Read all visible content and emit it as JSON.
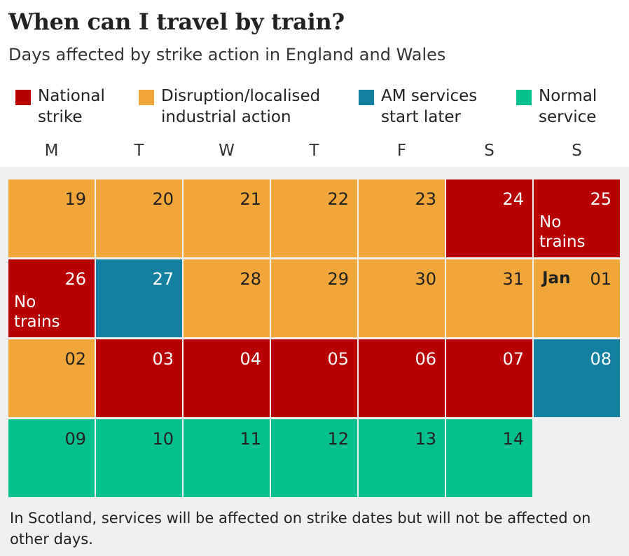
{
  "title": "When can I travel by train?",
  "subtitle": "Days affected by strike action in England and Wales",
  "legend": [
    {
      "key": "strike",
      "label": "National\nstrike",
      "color": "#b80000"
    },
    {
      "key": "disruption",
      "label": "Disruption/localised\nindustrial action",
      "color": "#f1a63a"
    },
    {
      "key": "am",
      "label": "AM services\nstart later",
      "color": "#1380a1"
    },
    {
      "key": "normal",
      "label": "Normal\nservice",
      "color": "#06c08d"
    }
  ],
  "weekdays": [
    "M",
    "T",
    "W",
    "T",
    "F",
    "S",
    "S"
  ],
  "weeks": [
    [
      {
        "day": "19",
        "status": "disruption"
      },
      {
        "day": "20",
        "status": "disruption"
      },
      {
        "day": "21",
        "status": "disruption"
      },
      {
        "day": "22",
        "status": "disruption"
      },
      {
        "day": "23",
        "status": "disruption"
      },
      {
        "day": "24",
        "status": "strike"
      },
      {
        "day": "25",
        "status": "strike",
        "note": "No\ntrains"
      }
    ],
    [
      {
        "day": "26",
        "status": "strike",
        "note": "No\ntrains"
      },
      {
        "day": "27",
        "status": "am"
      },
      {
        "day": "28",
        "status": "disruption"
      },
      {
        "day": "29",
        "status": "disruption"
      },
      {
        "day": "30",
        "status": "disruption"
      },
      {
        "day": "31",
        "status": "disruption"
      },
      {
        "day": "01",
        "status": "disruption",
        "month": "Jan"
      }
    ],
    [
      {
        "day": "02",
        "status": "disruption"
      },
      {
        "day": "03",
        "status": "strike"
      },
      {
        "day": "04",
        "status": "strike"
      },
      {
        "day": "05",
        "status": "strike"
      },
      {
        "day": "06",
        "status": "strike"
      },
      {
        "day": "07",
        "status": "strike"
      },
      {
        "day": "08",
        "status": "am"
      }
    ],
    [
      {
        "day": "09",
        "status": "normal"
      },
      {
        "day": "10",
        "status": "normal"
      },
      {
        "day": "11",
        "status": "normal"
      },
      {
        "day": "12",
        "status": "normal"
      },
      {
        "day": "13",
        "status": "normal"
      },
      {
        "day": "14",
        "status": "normal"
      }
    ]
  ],
  "footnote": "In Scotland, services will be affected on strike dates but will not be affected on other days."
}
